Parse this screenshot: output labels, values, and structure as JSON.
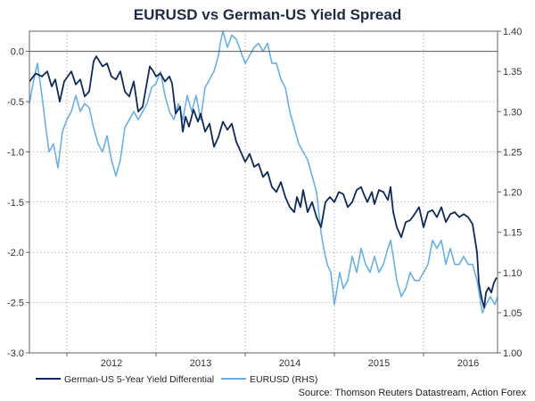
{
  "chart_data": {
    "type": "line",
    "title": "EURUSD vs German-US Yield Spread",
    "x_tick_labels": [
      "2012",
      "2013",
      "2014",
      "2015",
      "2016"
    ],
    "x_range": [
      2011.58,
      2016.83
    ],
    "y_left": {
      "range": [
        -3.0,
        0.2
      ],
      "ticks": [
        0.0,
        -0.5,
        -1.0,
        -1.5,
        -2.0,
        -2.5,
        -3.0
      ],
      "tick_labels": [
        "0.0",
        "-0.5",
        "-1.0",
        "-1.5",
        "-2.0",
        "-2.5",
        "-3.0"
      ]
    },
    "y_right": {
      "range": [
        1.0,
        1.4
      ],
      "ticks": [
        1.4,
        1.35,
        1.3,
        1.25,
        1.2,
        1.15,
        1.1,
        1.05,
        1.0
      ],
      "tick_labels": [
        "1.40",
        "1.35",
        "1.30",
        "1.25",
        "1.20",
        "1.15",
        "1.10",
        "1.05",
        "1.00"
      ]
    },
    "grid": true,
    "legend_position": "bottom-left",
    "series": [
      {
        "name": "German-US 5-Year Yield Differential",
        "axis": "left",
        "color": "#0e2a5a",
        "points": [
          [
            2011.58,
            -0.3
          ],
          [
            2011.65,
            -0.22
          ],
          [
            2011.72,
            -0.25
          ],
          [
            2011.78,
            -0.2
          ],
          [
            2011.83,
            -0.35
          ],
          [
            2011.87,
            -0.28
          ],
          [
            2011.92,
            -0.5
          ],
          [
            2011.97,
            -0.3
          ],
          [
            2012.05,
            -0.2
          ],
          [
            2012.1,
            -0.33
          ],
          [
            2012.15,
            -0.28
          ],
          [
            2012.2,
            -0.45
          ],
          [
            2012.25,
            -0.4
          ],
          [
            2012.3,
            -0.1
          ],
          [
            2012.33,
            -0.05
          ],
          [
            2012.4,
            -0.15
          ],
          [
            2012.45,
            -0.12
          ],
          [
            2012.5,
            -0.25
          ],
          [
            2012.55,
            -0.28
          ],
          [
            2012.6,
            -0.2
          ],
          [
            2012.65,
            -0.4
          ],
          [
            2012.7,
            -0.45
          ],
          [
            2012.75,
            -0.3
          ],
          [
            2012.8,
            -0.6
          ],
          [
            2012.85,
            -0.55
          ],
          [
            2012.9,
            -0.3
          ],
          [
            2012.93,
            -0.15
          ],
          [
            2012.97,
            -0.2
          ],
          [
            2013.0,
            -0.25
          ],
          [
            2013.05,
            -0.22
          ],
          [
            2013.1,
            -0.3
          ],
          [
            2013.15,
            -0.25
          ],
          [
            2013.18,
            -0.32
          ],
          [
            2013.22,
            -0.62
          ],
          [
            2013.27,
            -0.55
          ],
          [
            2013.3,
            -0.8
          ],
          [
            2013.33,
            -0.65
          ],
          [
            2013.37,
            -0.75
          ],
          [
            2013.42,
            -0.58
          ],
          [
            2013.47,
            -0.7
          ],
          [
            2013.5,
            -0.62
          ],
          [
            2013.55,
            -0.8
          ],
          [
            2013.6,
            -0.72
          ],
          [
            2013.65,
            -0.95
          ],
          [
            2013.7,
            -0.85
          ],
          [
            2013.75,
            -0.7
          ],
          [
            2013.8,
            -0.78
          ],
          [
            2013.85,
            -0.72
          ],
          [
            2013.9,
            -0.9
          ],
          [
            2013.95,
            -1.0
          ],
          [
            2014.0,
            -1.1
          ],
          [
            2014.05,
            -1.02
          ],
          [
            2014.1,
            -1.15
          ],
          [
            2014.15,
            -1.12
          ],
          [
            2014.2,
            -1.25
          ],
          [
            2014.25,
            -1.2
          ],
          [
            2014.3,
            -1.35
          ],
          [
            2014.35,
            -1.4
          ],
          [
            2014.4,
            -1.3
          ],
          [
            2014.45,
            -1.45
          ],
          [
            2014.5,
            -1.55
          ],
          [
            2014.55,
            -1.6
          ],
          [
            2014.58,
            -1.45
          ],
          [
            2014.62,
            -1.55
          ],
          [
            2014.65,
            -1.38
          ],
          [
            2014.7,
            -1.6
          ],
          [
            2014.75,
            -1.5
          ],
          [
            2014.8,
            -1.65
          ],
          [
            2014.85,
            -1.75
          ],
          [
            2014.9,
            -1.5
          ],
          [
            2014.95,
            -1.45
          ],
          [
            2015.0,
            -1.5
          ],
          [
            2015.05,
            -1.4
          ],
          [
            2015.1,
            -1.42
          ],
          [
            2015.15,
            -1.55
          ],
          [
            2015.2,
            -1.5
          ],
          [
            2015.25,
            -1.38
          ],
          [
            2015.3,
            -1.35
          ],
          [
            2015.33,
            -1.42
          ],
          [
            2015.37,
            -1.5
          ],
          [
            2015.42,
            -1.4
          ],
          [
            2015.45,
            -1.52
          ],
          [
            2015.5,
            -1.38
          ],
          [
            2015.55,
            -1.4
          ],
          [
            2015.6,
            -1.48
          ],
          [
            2015.63,
            -1.35
          ],
          [
            2015.66,
            -1.6
          ],
          [
            2015.7,
            -1.75
          ],
          [
            2015.75,
            -1.85
          ],
          [
            2015.8,
            -1.7
          ],
          [
            2015.85,
            -1.68
          ],
          [
            2015.9,
            -1.62
          ],
          [
            2015.95,
            -1.55
          ],
          [
            2016.0,
            -1.75
          ],
          [
            2016.05,
            -1.6
          ],
          [
            2016.1,
            -1.58
          ],
          [
            2016.15,
            -1.65
          ],
          [
            2016.2,
            -1.55
          ],
          [
            2016.25,
            -1.7
          ],
          [
            2016.3,
            -1.62
          ],
          [
            2016.35,
            -1.6
          ],
          [
            2016.4,
            -1.65
          ],
          [
            2016.45,
            -1.62
          ],
          [
            2016.5,
            -1.65
          ],
          [
            2016.55,
            -1.72
          ],
          [
            2016.6,
            -2.0
          ],
          [
            2016.62,
            -2.3
          ],
          [
            2016.65,
            -2.45
          ],
          [
            2016.68,
            -2.55
          ],
          [
            2016.7,
            -2.4
          ],
          [
            2016.73,
            -2.35
          ],
          [
            2016.76,
            -2.4
          ],
          [
            2016.79,
            -2.3
          ],
          [
            2016.82,
            -2.25
          ]
        ]
      },
      {
        "name": "EURUSD (RHS)",
        "axis": "right",
        "color": "#6ab0e4",
        "points": [
          [
            2011.58,
            1.31
          ],
          [
            2011.62,
            1.335
          ],
          [
            2011.67,
            1.36
          ],
          [
            2011.72,
            1.32
          ],
          [
            2011.77,
            1.275
          ],
          [
            2011.8,
            1.25
          ],
          [
            2011.85,
            1.26
          ],
          [
            2011.9,
            1.23
          ],
          [
            2011.95,
            1.275
          ],
          [
            2012.0,
            1.29
          ],
          [
            2012.05,
            1.3
          ],
          [
            2012.1,
            1.32
          ],
          [
            2012.15,
            1.3
          ],
          [
            2012.2,
            1.31
          ],
          [
            2012.25,
            1.305
          ],
          [
            2012.3,
            1.28
          ],
          [
            2012.35,
            1.26
          ],
          [
            2012.4,
            1.25
          ],
          [
            2012.45,
            1.27
          ],
          [
            2012.5,
            1.24
          ],
          [
            2012.55,
            1.22
          ],
          [
            2012.6,
            1.24
          ],
          [
            2012.65,
            1.28
          ],
          [
            2012.7,
            1.29
          ],
          [
            2012.75,
            1.3
          ],
          [
            2012.8,
            1.29
          ],
          [
            2012.85,
            1.3
          ],
          [
            2012.9,
            1.31
          ],
          [
            2012.95,
            1.33
          ],
          [
            2013.0,
            1.335
          ],
          [
            2013.05,
            1.35
          ],
          [
            2013.1,
            1.32
          ],
          [
            2013.15,
            1.3
          ],
          [
            2013.2,
            1.29
          ],
          [
            2013.25,
            1.31
          ],
          [
            2013.3,
            1.29
          ],
          [
            2013.35,
            1.32
          ],
          [
            2013.4,
            1.3
          ],
          [
            2013.45,
            1.32
          ],
          [
            2013.5,
            1.29
          ],
          [
            2013.55,
            1.33
          ],
          [
            2013.6,
            1.34
          ],
          [
            2013.65,
            1.35
          ],
          [
            2013.7,
            1.37
          ],
          [
            2013.72,
            1.385
          ],
          [
            2013.75,
            1.4
          ],
          [
            2013.8,
            1.38
          ],
          [
            2013.85,
            1.395
          ],
          [
            2013.9,
            1.39
          ],
          [
            2013.95,
            1.375
          ],
          [
            2014.0,
            1.36
          ],
          [
            2014.05,
            1.37
          ],
          [
            2014.1,
            1.38
          ],
          [
            2014.15,
            1.385
          ],
          [
            2014.2,
            1.375
          ],
          [
            2014.25,
            1.385
          ],
          [
            2014.3,
            1.36
          ],
          [
            2014.35,
            1.36
          ],
          [
            2014.4,
            1.34
          ],
          [
            2014.45,
            1.33
          ],
          [
            2014.5,
            1.3
          ],
          [
            2014.55,
            1.28
          ],
          [
            2014.6,
            1.26
          ],
          [
            2014.65,
            1.25
          ],
          [
            2014.7,
            1.24
          ],
          [
            2014.75,
            1.22
          ],
          [
            2014.8,
            1.2
          ],
          [
            2014.85,
            1.15
          ],
          [
            2014.88,
            1.13
          ],
          [
            2014.92,
            1.11
          ],
          [
            2014.96,
            1.1
          ],
          [
            2015.0,
            1.06
          ],
          [
            2015.03,
            1.08
          ],
          [
            2015.06,
            1.1
          ],
          [
            2015.1,
            1.08
          ],
          [
            2015.15,
            1.09
          ],
          [
            2015.2,
            1.12
          ],
          [
            2015.25,
            1.1
          ],
          [
            2015.3,
            1.13
          ],
          [
            2015.35,
            1.11
          ],
          [
            2015.4,
            1.1
          ],
          [
            2015.45,
            1.12
          ],
          [
            2015.5,
            1.1
          ],
          [
            2015.55,
            1.11
          ],
          [
            2015.6,
            1.13
          ],
          [
            2015.63,
            1.14
          ],
          [
            2015.66,
            1.12
          ],
          [
            2015.7,
            1.09
          ],
          [
            2015.75,
            1.07
          ],
          [
            2015.8,
            1.08
          ],
          [
            2015.85,
            1.1
          ],
          [
            2015.9,
            1.09
          ],
          [
            2015.95,
            1.09
          ],
          [
            2016.0,
            1.1
          ],
          [
            2016.05,
            1.11
          ],
          [
            2016.1,
            1.14
          ],
          [
            2016.15,
            1.13
          ],
          [
            2016.2,
            1.14
          ],
          [
            2016.25,
            1.11
          ],
          [
            2016.3,
            1.13
          ],
          [
            2016.35,
            1.11
          ],
          [
            2016.4,
            1.11
          ],
          [
            2016.45,
            1.12
          ],
          [
            2016.5,
            1.11
          ],
          [
            2016.55,
            1.11
          ],
          [
            2016.6,
            1.09
          ],
          [
            2016.63,
            1.07
          ],
          [
            2016.66,
            1.05
          ],
          [
            2016.7,
            1.06
          ],
          [
            2016.75,
            1.07
          ],
          [
            2016.8,
            1.06
          ],
          [
            2016.83,
            1.07
          ]
        ]
      }
    ],
    "source": "Source: Thomson Reuters Datastream, Action Forex"
  }
}
